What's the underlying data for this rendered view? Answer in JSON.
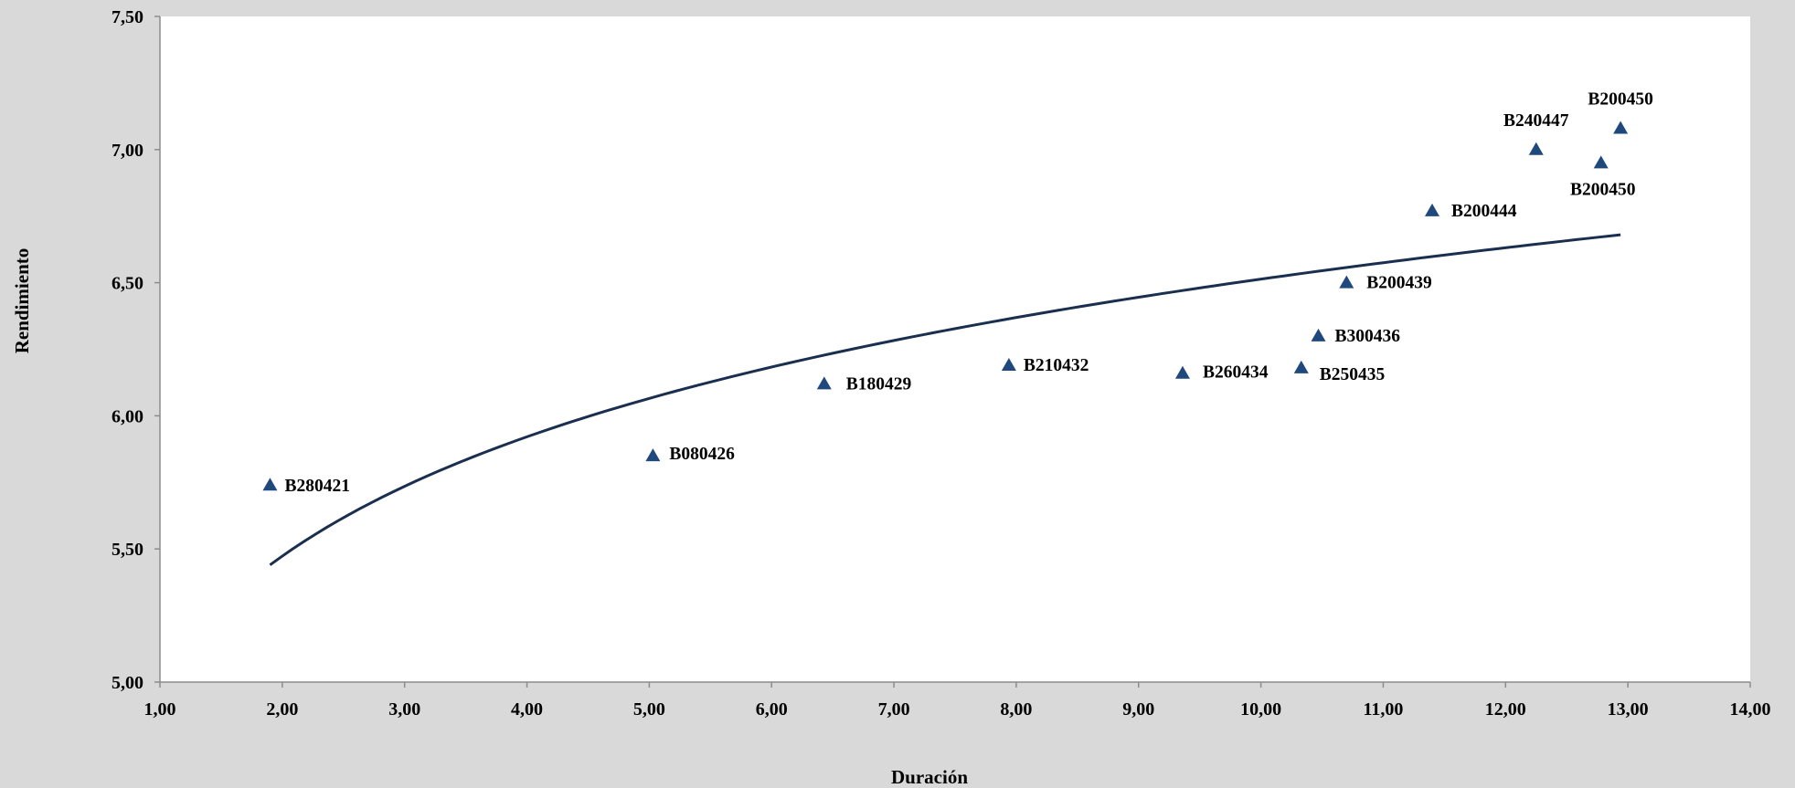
{
  "chart_data": {
    "type": "scatter",
    "xlabel": "Duración",
    "ylabel": "Rendimiento",
    "xlim": [
      1,
      14
    ],
    "ylim": [
      5,
      7.5
    ],
    "x_ticks": [
      "1,00",
      "2,00",
      "3,00",
      "4,00",
      "5,00",
      "6,00",
      "7,00",
      "8,00",
      "9,00",
      "10,00",
      "11,00",
      "12,00",
      "13,00",
      "14,00"
    ],
    "y_ticks": [
      "5,00",
      "5,50",
      "6,00",
      "6,50",
      "7,00",
      "7,50"
    ],
    "grid": false,
    "legend": "none",
    "colors": {
      "marker": "#1f497d",
      "trendline": "#1a2f4f",
      "plot_bg": "#ffffff",
      "page_bg": "#d9d9d9",
      "axis": "#8c8c8c"
    },
    "points": [
      {
        "label": "B280421",
        "x": 1.9,
        "y": 5.74
      },
      {
        "label": "B080426",
        "x": 5.03,
        "y": 5.85
      },
      {
        "label": "B180429",
        "x": 6.43,
        "y": 6.12
      },
      {
        "label": "B210432",
        "x": 7.94,
        "y": 6.19
      },
      {
        "label": "B260434",
        "x": 9.36,
        "y": 6.16
      },
      {
        "label": "B250435",
        "x": 10.33,
        "y": 6.18
      },
      {
        "label": "B300436",
        "x": 10.47,
        "y": 6.3
      },
      {
        "label": "B200439",
        "x": 10.7,
        "y": 6.5
      },
      {
        "label": "B200444",
        "x": 11.4,
        "y": 6.77
      },
      {
        "label": "B240447",
        "x": 12.25,
        "y": 7.0
      },
      {
        "label": "B200450",
        "x": 12.78,
        "y": 6.95
      },
      {
        "label": "B200450",
        "x": 12.94,
        "y": 7.08
      }
    ],
    "trendline": {
      "type": "logarithmic",
      "x_start": 1.9,
      "x_end": 12.94,
      "y_start": 5.44,
      "y_end": 6.68
    }
  }
}
